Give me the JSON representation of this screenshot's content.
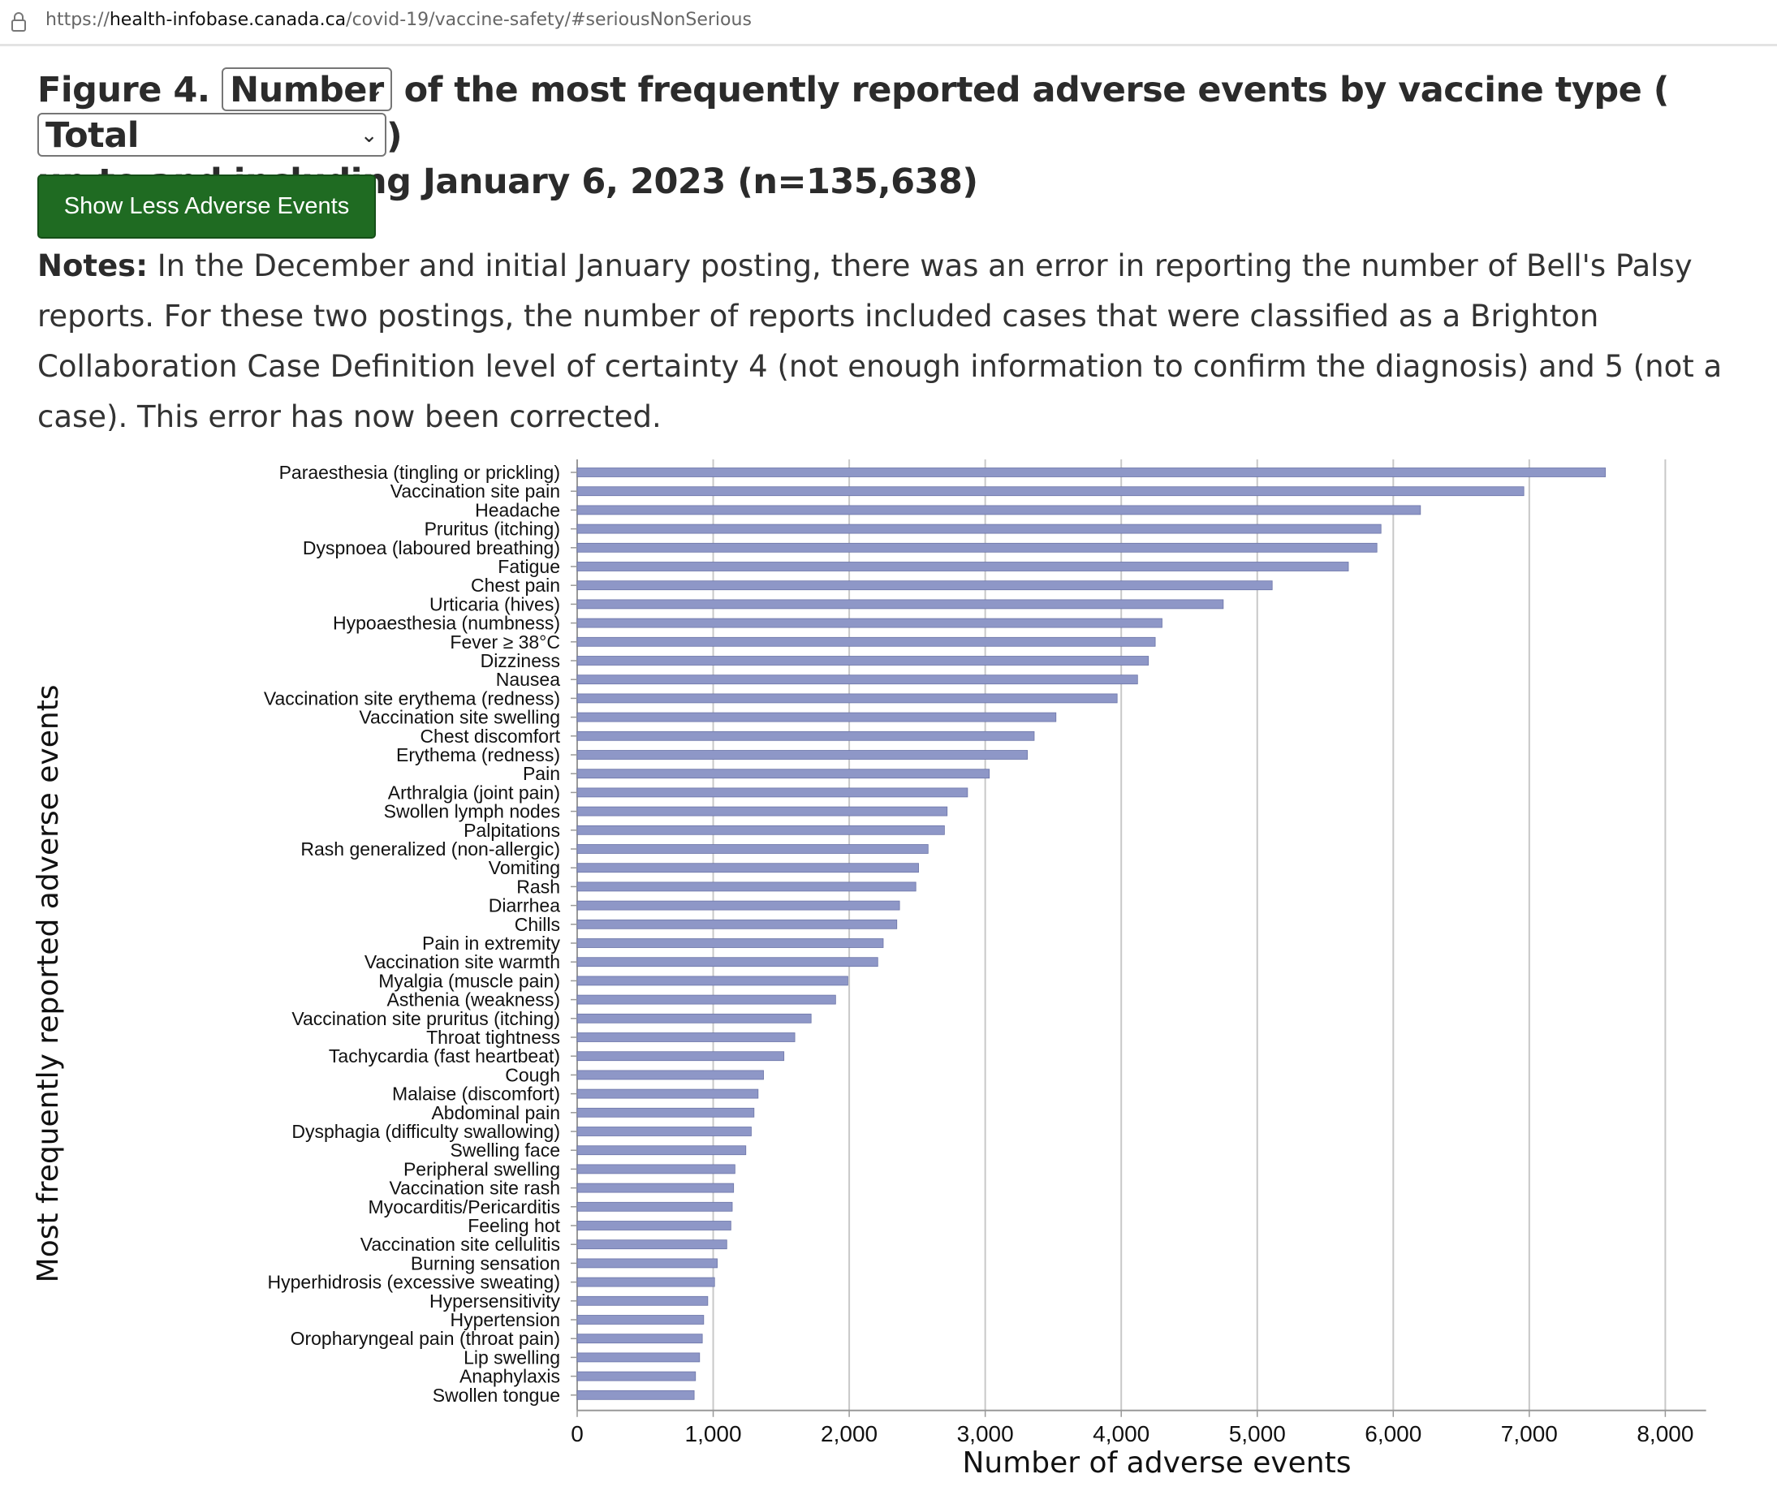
{
  "browser": {
    "url_prefix": "https://",
    "url_host": "health-infobase.canada.ca",
    "url_path": "/covid-19/vaccine-safety/#seriousNonSerious"
  },
  "figure": {
    "title_prefix": "Figure 4.",
    "measure_select": "Number",
    "title_middle": "of the most frequently reported adverse events by vaccine type (",
    "vaccine_select": "Total",
    "title_close": ")",
    "title_line2": "up to and including January 6, 2023 (n=135,638)"
  },
  "toggle_button": "Show Less Adverse Events",
  "notes": {
    "label": "Notes:",
    "text": "In the December and initial January posting, there was an error in reporting the number of Bell's Palsy reports. For these two postings, the number of reports included cases that were classified as a Brighton Collaboration Case Definition level of certainty 4 (not enough information to confirm the diagnosis) and 5 (not a case).  This error has now been corrected."
  },
  "chart_data": {
    "type": "bar",
    "orientation": "horizontal",
    "xlabel": "Number of adverse events",
    "ylabel": "Most frequently reported adverse events",
    "xlim": [
      0,
      8300
    ],
    "xticks": [
      0,
      1000,
      2000,
      3000,
      4000,
      5000,
      6000,
      7000,
      8000
    ],
    "xtick_labels": [
      "0",
      "1,000",
      "2,000",
      "3,000",
      "4,000",
      "5,000",
      "6,000",
      "7,000",
      "8,000"
    ],
    "grid": "vertical",
    "bar_color": "#8e97c7",
    "categories": [
      "Paraesthesia (tingling or prickling)",
      "Vaccination site pain",
      "Headache",
      "Pruritus (itching)",
      "Dyspnoea (laboured breathing)",
      "Fatigue",
      "Chest pain",
      "Urticaria (hives)",
      "Hypoaesthesia (numbness)",
      "Fever ≥ 38°C",
      "Dizziness",
      "Nausea",
      "Vaccination site erythema (redness)",
      "Vaccination site swelling",
      "Chest discomfort",
      "Erythema (redness)",
      "Pain",
      "Arthralgia (joint pain)",
      "Swollen lymph nodes",
      "Palpitations",
      "Rash generalized (non-allergic)",
      "Vomiting",
      "Rash",
      "Diarrhea",
      "Chills",
      "Pain in extremity",
      "Vaccination site warmth",
      "Myalgia (muscle pain)",
      "Asthenia (weakness)",
      "Vaccination site pruritus (itching)",
      "Throat tightness",
      "Tachycardia (fast heartbeat)",
      "Cough",
      "Malaise (discomfort)",
      "Abdominal pain",
      "Dysphagia (difficulty swallowing)",
      "Swelling face",
      "Peripheral swelling",
      "Vaccination site rash",
      "Myocarditis/Pericarditis",
      "Feeling hot",
      "Vaccination site cellulitis",
      "Burning sensation",
      "Hyperhidrosis (excessive sweating)",
      "Hypersensitivity",
      "Hypertension",
      "Oropharyngeal pain (throat pain)",
      "Lip swelling",
      "Anaphylaxis",
      "Swollen tongue"
    ],
    "values": [
      7560,
      6960,
      6200,
      5910,
      5880,
      5670,
      5110,
      4750,
      4300,
      4250,
      4200,
      4120,
      3970,
      3520,
      3360,
      3310,
      3030,
      2870,
      2720,
      2700,
      2580,
      2510,
      2490,
      2370,
      2350,
      2250,
      2210,
      1990,
      1900,
      1720,
      1600,
      1520,
      1370,
      1330,
      1300,
      1280,
      1240,
      1160,
      1150,
      1140,
      1130,
      1100,
      1030,
      1010,
      960,
      930,
      920,
      900,
      870,
      860
    ]
  }
}
